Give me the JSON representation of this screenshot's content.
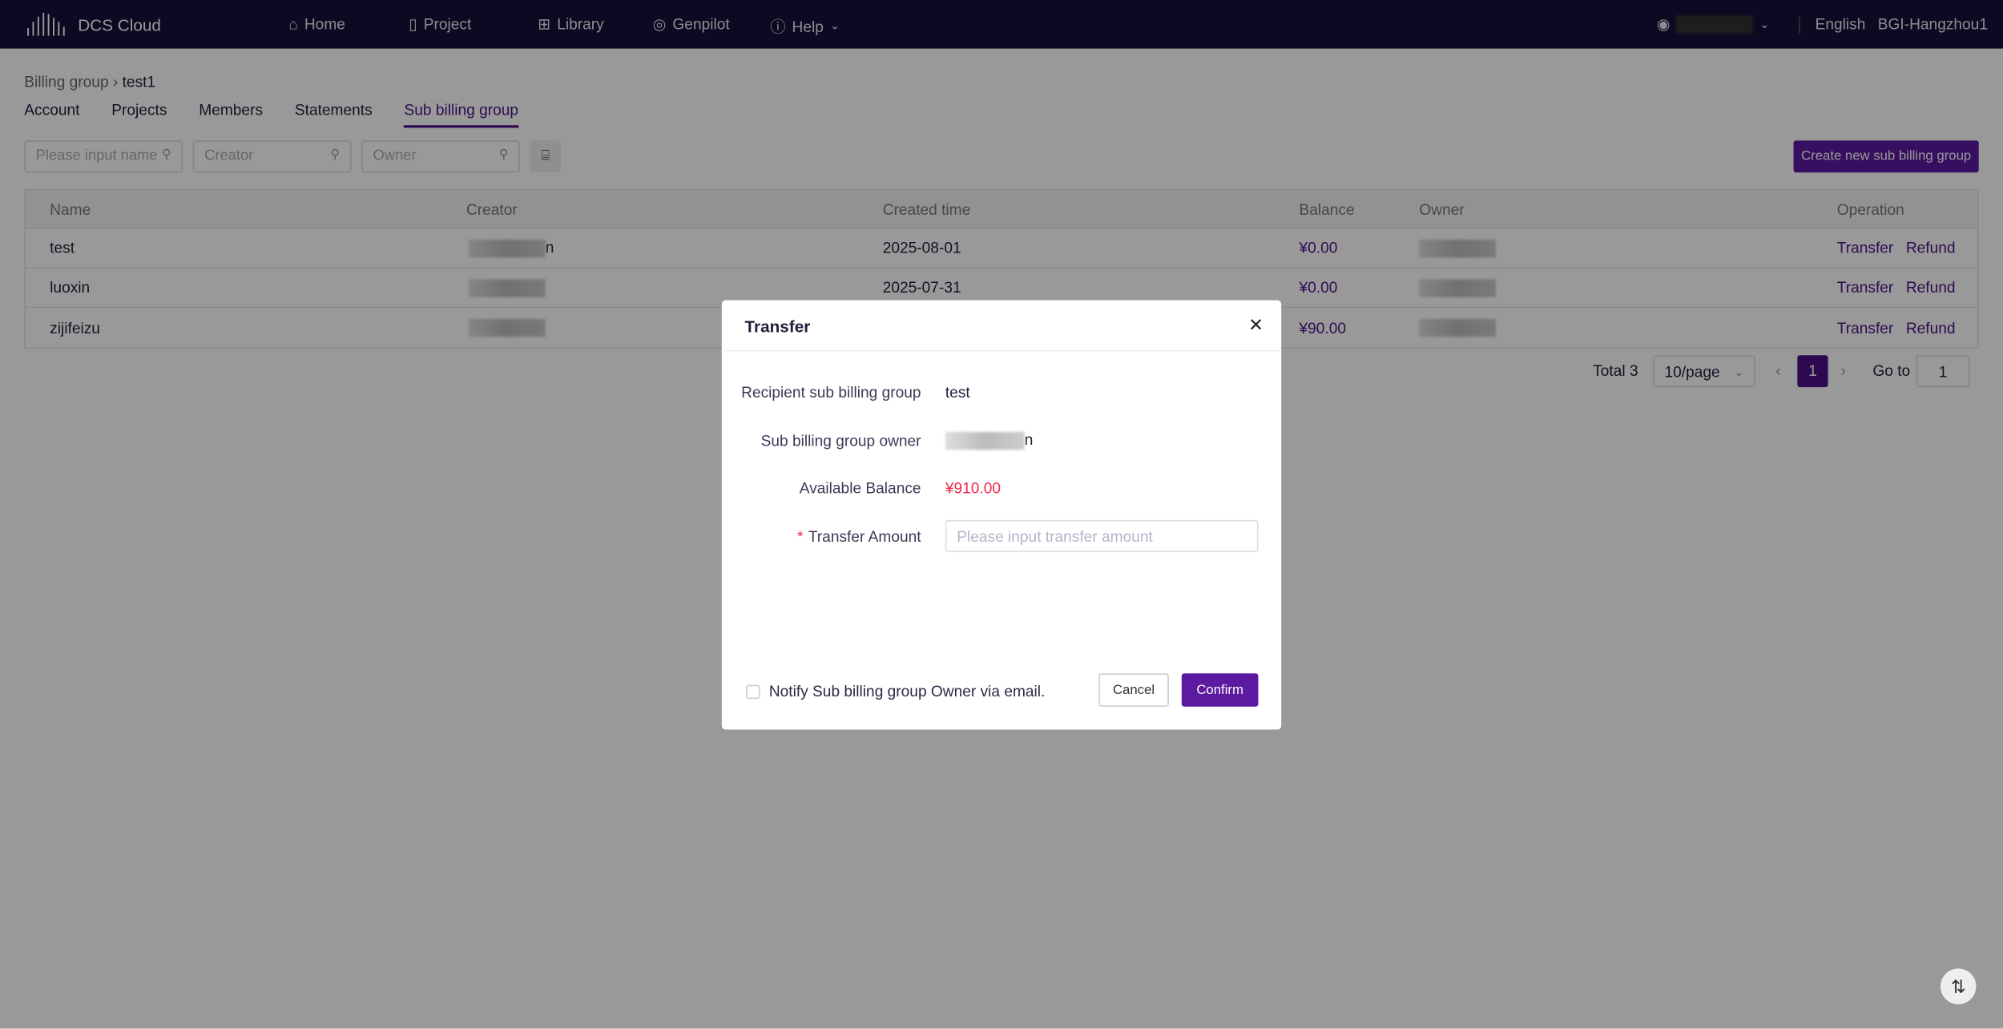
{
  "nav": {
    "brand": "DCS Cloud",
    "items": [
      {
        "label": "Home",
        "icon": "home-icon"
      },
      {
        "label": "Project",
        "icon": "file-icon"
      },
      {
        "label": "Library",
        "icon": "grid-icon"
      },
      {
        "label": "Genpilot",
        "icon": "globe-icon"
      },
      {
        "label": "Help",
        "icon": "question-icon"
      }
    ],
    "language": "English",
    "region": "BGI-Hangzhou1"
  },
  "breadcrumb": {
    "parent": "Billing group",
    "current": "test1"
  },
  "tabs": [
    {
      "label": "Account"
    },
    {
      "label": "Projects"
    },
    {
      "label": "Members"
    },
    {
      "label": "Statements"
    },
    {
      "label": "Sub billing group",
      "active": true
    }
  ],
  "filters": {
    "name_placeholder": "Please input name",
    "creator_placeholder": "Creator",
    "owner_placeholder": "Owner"
  },
  "create_button": "Create new sub billing group",
  "table": {
    "columns": [
      "Name",
      "Creator",
      "Created time",
      "Balance",
      "Owner",
      "Operation"
    ],
    "rows": [
      {
        "name": "test",
        "creator_fragment": "n",
        "created": "2025-08-01",
        "balance": "¥0.00",
        "op1": "Transfer",
        "op2": "Refund"
      },
      {
        "name": "luoxin",
        "creator_fragment": "",
        "created": "2025-07-31",
        "balance": "¥0.00",
        "op1": "Transfer",
        "op2": "Refund"
      },
      {
        "name": "zijifeizu",
        "creator_fragment": "",
        "created": "",
        "balance": "¥90.00",
        "op1": "Transfer",
        "op2": "Refund"
      }
    ]
  },
  "pagination": {
    "total": "Total 3",
    "page_size": "10/page",
    "current_page": "1",
    "goto_label": "Go to",
    "goto_value": "1"
  },
  "modal": {
    "title": "Transfer",
    "recipient_label": "Recipient sub billing group",
    "recipient_value": "test",
    "owner_label": "Sub billing group owner",
    "owner_fragment": "n",
    "balance_label": "Available Balance",
    "balance_value": "¥910.00",
    "amount_label": "Transfer Amount",
    "amount_placeholder": "Please input transfer amount",
    "notify_label": "Notify Sub billing group Owner via email.",
    "cancel": "Cancel",
    "confirm": "Confirm"
  },
  "colors": {
    "accent": "#5b1aa0",
    "nav_bg": "#14123a",
    "balance_red": "#f0284a"
  }
}
